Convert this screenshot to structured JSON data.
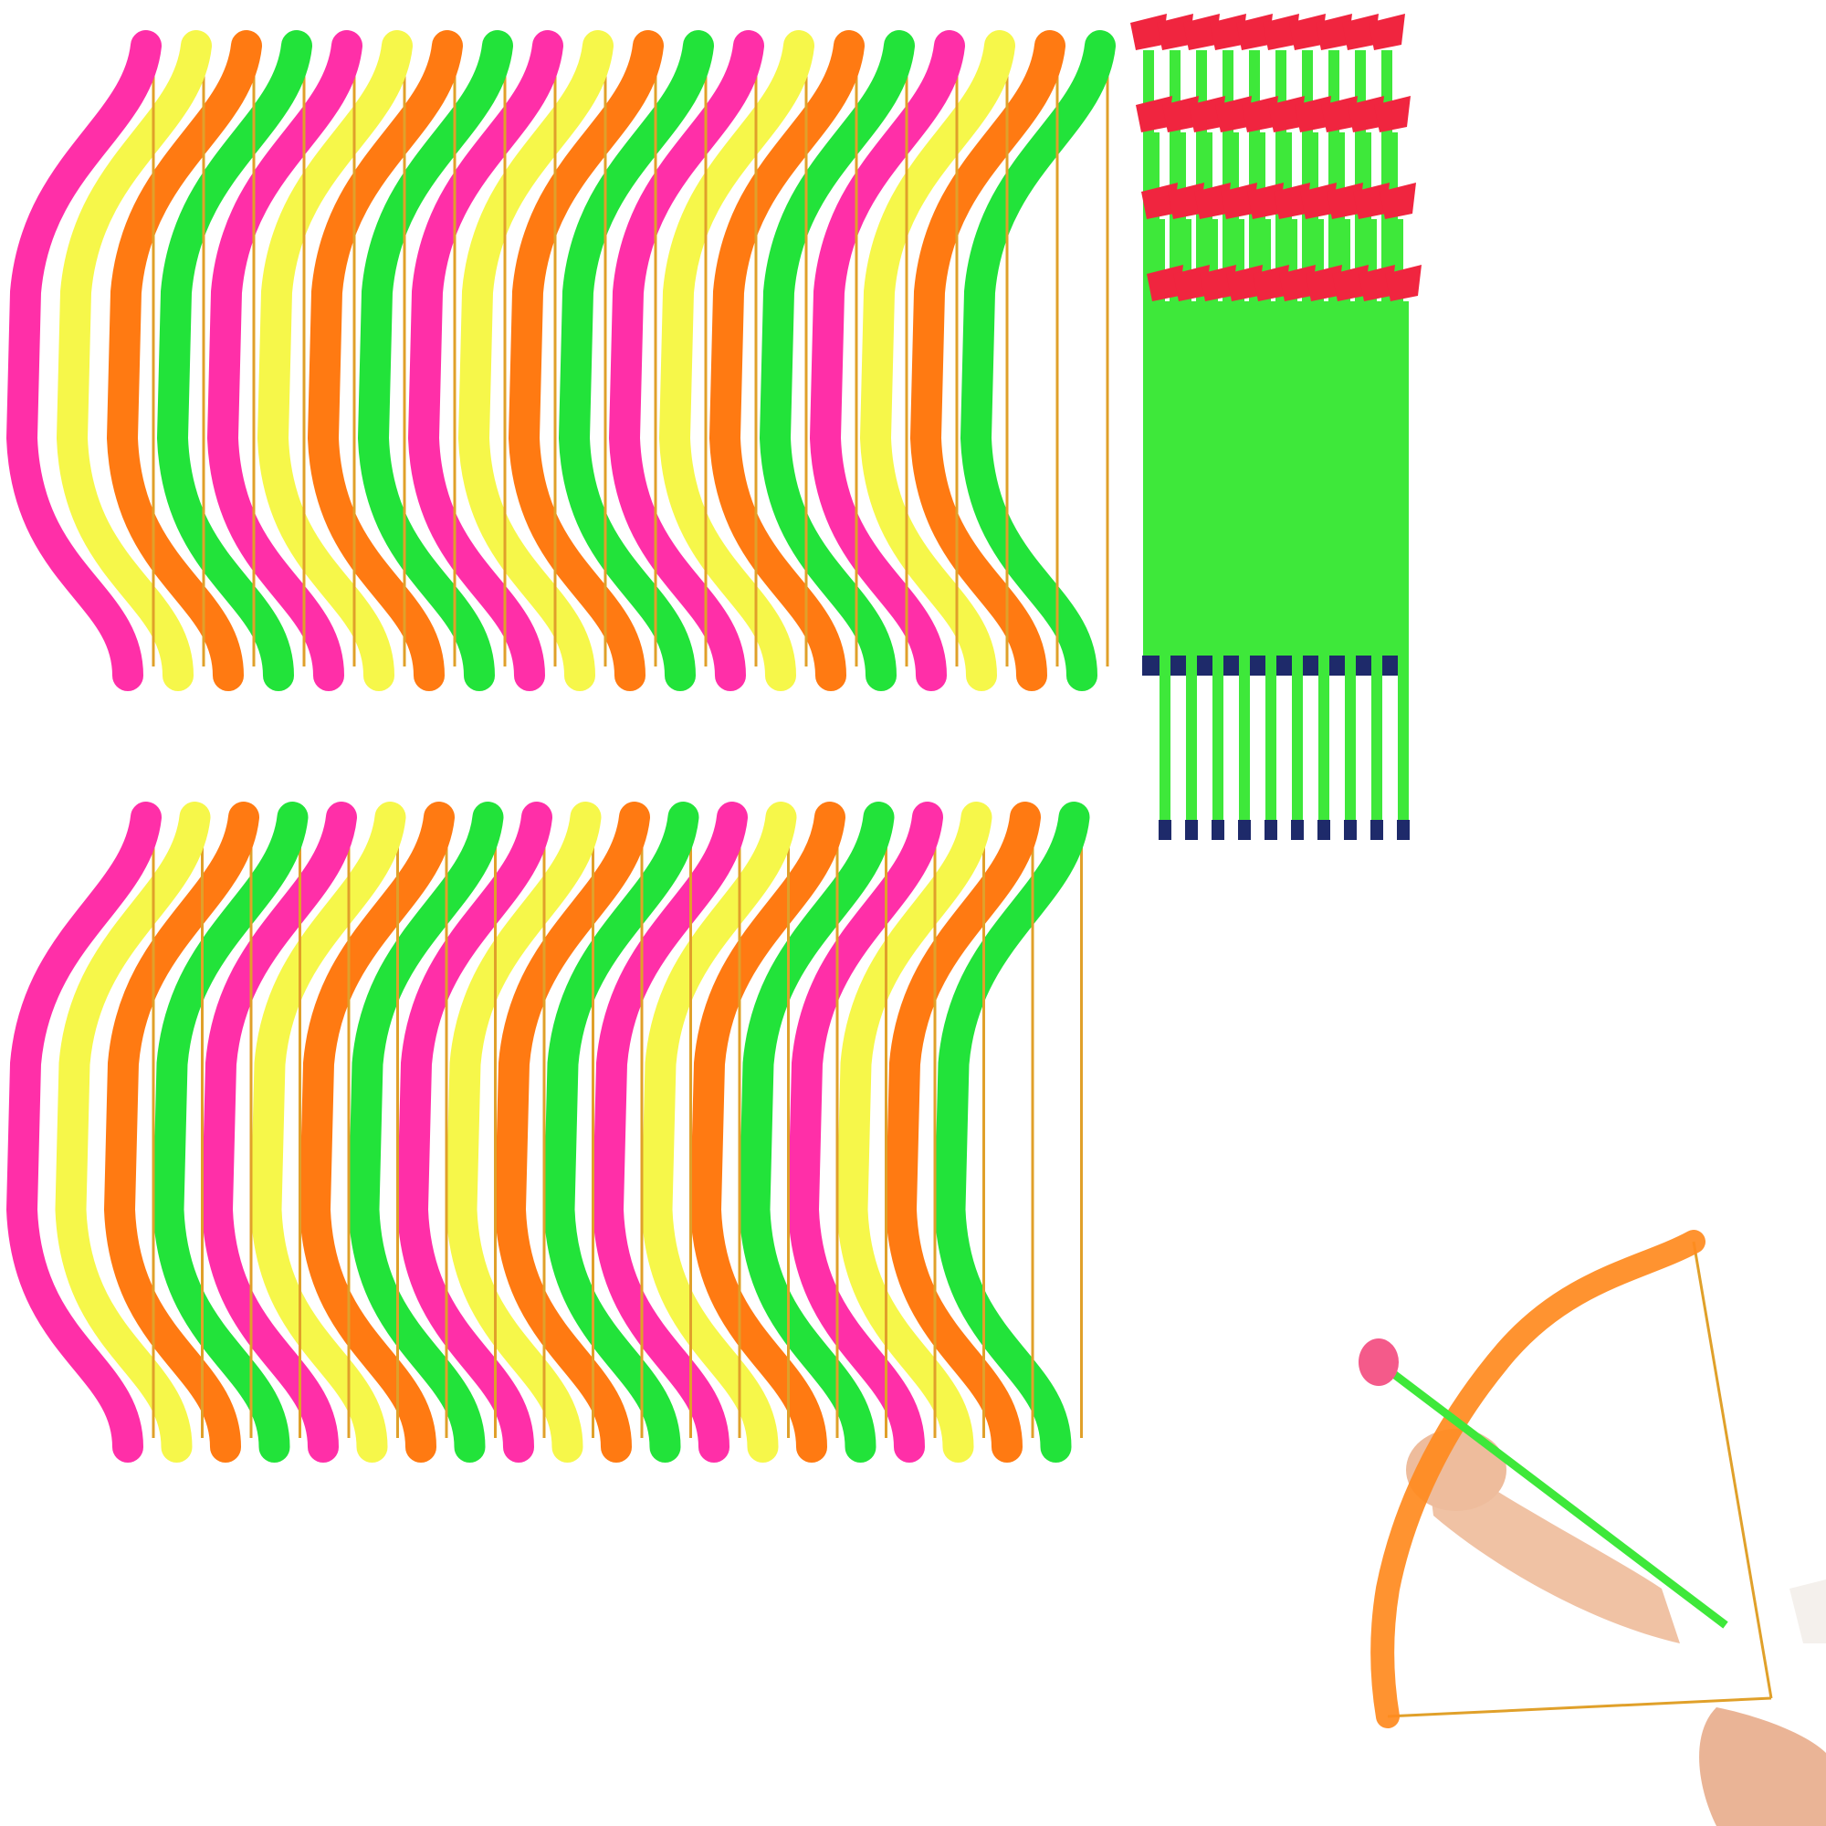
{
  "colors": {
    "background": "#ffffff",
    "bow_palette": [
      "#ff2fa8",
      "#f6f74a",
      "#ff7a12",
      "#22e33a"
    ],
    "string": "#e0a02a",
    "arrow_shaft": "#3ee83a",
    "suction_cup": "#f0253f",
    "arrow_nock": "#1e2a6a",
    "skin": "#f1c4a6"
  }
}
